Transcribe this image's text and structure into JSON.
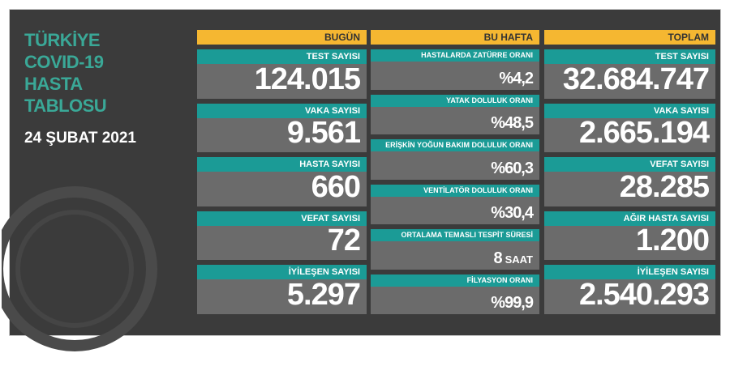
{
  "title_lines": [
    "TÜRKİYE",
    "COVID-19",
    "HASTA",
    "TABLOSU"
  ],
  "date": "24 ŞUBAT 2021",
  "columns": [
    {
      "header": "BUGÜN",
      "items": [
        {
          "label": "TEST SAYISI",
          "value": "124.015"
        },
        {
          "label": "VAKA SAYISI",
          "value": "9.561"
        },
        {
          "label": "HASTA SAYISI",
          "value": "660"
        },
        {
          "label": "VEFAT SAYISI",
          "value": "72"
        },
        {
          "label": "İYİLEŞEN SAYISI",
          "value": "5.297"
        }
      ]
    },
    {
      "header": "BU HAFTA",
      "items": [
        {
          "label": "HASTALARDA ZATÜRRE ORANI",
          "value": "%4,2"
        },
        {
          "label": "YATAK DOLULUK ORANI",
          "value": "%48,5"
        },
        {
          "label": "ERİŞKİN YOĞUN BAKIM DOLULUK ORANI",
          "value": "%60,3"
        },
        {
          "label": "VENTİLATÖR DOLULUK ORANI",
          "value": "%30,4"
        },
        {
          "label": "ORTALAMA TEMASLI TESPİT SÜRESİ",
          "value": "8",
          "unit": "SAAT"
        },
        {
          "label": "FİLYASYON ORANI",
          "value": "%99,9"
        }
      ]
    },
    {
      "header": "TOPLAM",
      "items": [
        {
          "label": "TEST SAYISI",
          "value": "32.684.747"
        },
        {
          "label": "VAKA SAYISI",
          "value": "2.665.194"
        },
        {
          "label": "VEFAT SAYISI",
          "value": "28.285"
        },
        {
          "label": "AĞIR HASTA SAYISI",
          "value": "1.200"
        },
        {
          "label": "İYİLEŞEN SAYISI",
          "value": "2.540.293"
        }
      ]
    }
  ]
}
